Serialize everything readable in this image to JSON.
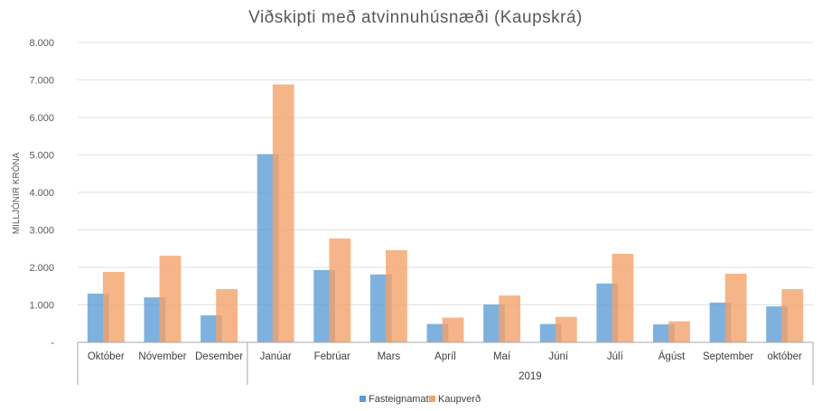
{
  "chart_data": {
    "type": "bar",
    "title": "Viðskipti með atvinnuhúsnæði (Kaupskrá)",
    "ylabel": "MILLJÓNIR KRÓNA",
    "xlabel": "",
    "ylim": [
      0,
      8000
    ],
    "y_ticks": [
      "-",
      "1.000",
      "2.000",
      "3.000",
      "4.000",
      "5.000",
      "6.000",
      "7.000",
      "8.000"
    ],
    "categories": [
      "Október",
      "Nóvember",
      "Desember",
      "Janúar",
      "Febrúar",
      "Mars",
      "Apríl",
      "Maí",
      "Júní",
      "Júlí",
      "Ágúst",
      "September",
      "október"
    ],
    "groups": [
      {
        "label": "",
        "count": 3
      },
      {
        "label": "2019",
        "count": 10
      }
    ],
    "series": [
      {
        "name": "Fasteignamat",
        "color": "#5B9BD5",
        "values": [
          1300,
          1200,
          720,
          5020,
          1930,
          1810,
          490,
          1010,
          490,
          1570,
          480,
          1060,
          960
        ]
      },
      {
        "name": "Kaupverð",
        "color": "#F4A26A",
        "values": [
          1880,
          2310,
          1420,
          6880,
          2770,
          2460,
          660,
          1250,
          680,
          2360,
          560,
          1830,
          1420
        ]
      }
    ],
    "grid": true,
    "legend_position": "bottom"
  }
}
